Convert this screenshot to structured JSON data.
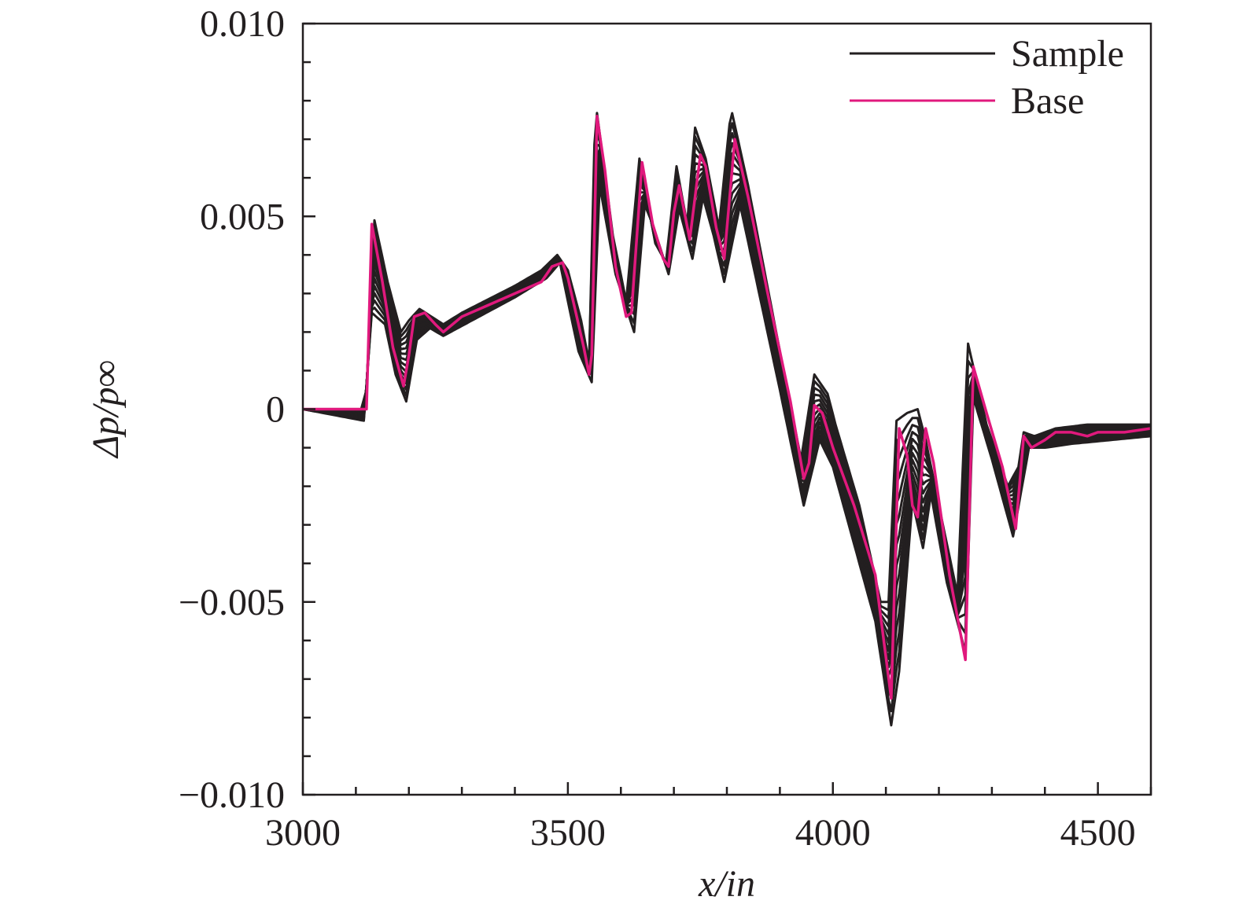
{
  "chart_data": {
    "type": "line",
    "title": "",
    "xlabel": "x/in",
    "ylabel": "Δp/p∞",
    "xlim": [
      3000,
      4600
    ],
    "ylim": [
      -0.01,
      0.01
    ],
    "x_ticks": [
      3000,
      3500,
      4000,
      4500
    ],
    "x_tick_labels": [
      "3000",
      "3500",
      "4000",
      "4500"
    ],
    "x_minor_step": 100,
    "y_ticks": [
      0.01,
      0.005,
      0,
      -0.005,
      -0.01
    ],
    "y_tick_labels": [
      "0.010",
      "0.005",
      "0",
      "−0.005",
      "−0.010"
    ],
    "y_minor_step": 0.001,
    "grid": false,
    "legend": "top-right",
    "colors": {
      "sample": "#231f20",
      "base": "#e0197d"
    },
    "series": [
      {
        "name": "Sample",
        "kind": "ensemble",
        "note_values": "sample envelope bounds",
        "upper": [
          [
            3000,
            0
          ],
          [
            3110,
            0
          ],
          [
            3120,
            0.0005
          ],
          [
            3135,
            0.0049
          ],
          [
            3160,
            0.0033
          ],
          [
            3185,
            0.002
          ],
          [
            3200,
            0.0023
          ],
          [
            3220,
            0.0026
          ],
          [
            3265,
            0.0022
          ],
          [
            3300,
            0.0025
          ],
          [
            3400,
            0.0032
          ],
          [
            3450,
            0.0036
          ],
          [
            3480,
            0.004
          ],
          [
            3500,
            0.0036
          ],
          [
            3525,
            0.0023
          ],
          [
            3540,
            0.0012
          ],
          [
            3552,
            0.008
          ],
          [
            3585,
            0.0045
          ],
          [
            3610,
            0.0028
          ],
          [
            3635,
            0.0065
          ],
          [
            3665,
            0.0043
          ],
          [
            3685,
            0.0038
          ],
          [
            3705,
            0.0063
          ],
          [
            3725,
            0.0048
          ],
          [
            3740,
            0.0073
          ],
          [
            3760,
            0.0065
          ],
          [
            3785,
            0.0047
          ],
          [
            3808,
            0.0078
          ],
          [
            3840,
            0.0058
          ],
          [
            3900,
            0.0015
          ],
          [
            3940,
            -0.0013
          ],
          [
            3965,
            0.0009
          ],
          [
            3990,
            0.0004
          ],
          [
            4005,
            -0.0004
          ],
          [
            4050,
            -0.0025
          ],
          [
            4090,
            -0.005
          ],
          [
            4105,
            -0.005
          ],
          [
            4120,
            -0.0003
          ],
          [
            4140,
            -0.0001
          ],
          [
            4160,
            0
          ],
          [
            4175,
            -0.0008
          ],
          [
            4200,
            -0.0025
          ],
          [
            4235,
            -0.0048
          ],
          [
            4255,
            0.0017
          ],
          [
            4290,
            -0.0004
          ],
          [
            4330,
            -0.002
          ],
          [
            4350,
            -0.0015
          ],
          [
            4360,
            -0.0006
          ],
          [
            4380,
            -0.0007
          ],
          [
            4420,
            -0.0005
          ],
          [
            4480,
            -0.0004
          ],
          [
            4600,
            -0.0004
          ]
        ],
        "lower": [
          [
            3000,
            0
          ],
          [
            3115,
            -0.0003
          ],
          [
            3130,
            0.0025
          ],
          [
            3155,
            0.0022
          ],
          [
            3175,
            0.0009
          ],
          [
            3195,
            0.0002
          ],
          [
            3215,
            0.0018
          ],
          [
            3240,
            0.0021
          ],
          [
            3265,
            0.0019
          ],
          [
            3400,
            0.0029
          ],
          [
            3460,
            0.0034
          ],
          [
            3485,
            0.0038
          ],
          [
            3500,
            0.0028
          ],
          [
            3520,
            0.0015
          ],
          [
            3545,
            0.0007
          ],
          [
            3560,
            0.0058
          ],
          [
            3590,
            0.0035
          ],
          [
            3625,
            0.002
          ],
          [
            3645,
            0.0053
          ],
          [
            3660,
            0.0048
          ],
          [
            3690,
            0.0035
          ],
          [
            3710,
            0.0052
          ],
          [
            3735,
            0.0039
          ],
          [
            3755,
            0.0055
          ],
          [
            3775,
            0.0045
          ],
          [
            3795,
            0.0033
          ],
          [
            3825,
            0.0053
          ],
          [
            3900,
            0.0005
          ],
          [
            3945,
            -0.0025
          ],
          [
            3975,
            -0.0008
          ],
          [
            4000,
            -0.0015
          ],
          [
            4040,
            -0.0035
          ],
          [
            4080,
            -0.0055
          ],
          [
            4110,
            -0.0082
          ],
          [
            4125,
            -0.0068
          ],
          [
            4150,
            -0.0024
          ],
          [
            4170,
            -0.0036
          ],
          [
            4185,
            -0.0022
          ],
          [
            4215,
            -0.0045
          ],
          [
            4250,
            -0.0063
          ],
          [
            4265,
            0.0003
          ],
          [
            4300,
            -0.0013
          ],
          [
            4340,
            -0.0033
          ],
          [
            4370,
            -0.001
          ],
          [
            4400,
            -0.001
          ],
          [
            4450,
            -0.0009
          ],
          [
            4600,
            -0.0007
          ]
        ]
      },
      {
        "name": "Base",
        "kind": "line",
        "points": [
          [
            3000,
            0
          ],
          [
            3040,
            0
          ],
          [
            3080,
            0
          ],
          [
            3120,
            0
          ],
          [
            3130,
            0.0048
          ],
          [
            3150,
            0.0033
          ],
          [
            3170,
            0.0016
          ],
          [
            3190,
            0.0006
          ],
          [
            3200,
            0.0014
          ],
          [
            3210,
            0.0024
          ],
          [
            3230,
            0.0025
          ],
          [
            3250,
            0.0022
          ],
          [
            3265,
            0.002
          ],
          [
            3300,
            0.0024
          ],
          [
            3350,
            0.0027
          ],
          [
            3400,
            0.003
          ],
          [
            3450,
            0.0033
          ],
          [
            3470,
            0.0037
          ],
          [
            3490,
            0.0038
          ],
          [
            3500,
            0.0034
          ],
          [
            3520,
            0.0022
          ],
          [
            3530,
            0.0016
          ],
          [
            3540,
            0.0009
          ],
          [
            3545,
            0.0014
          ],
          [
            3555,
            0.0076
          ],
          [
            3570,
            0.0062
          ],
          [
            3590,
            0.0037
          ],
          [
            3610,
            0.0024
          ],
          [
            3620,
            0.0025
          ],
          [
            3640,
            0.0064
          ],
          [
            3660,
            0.0048
          ],
          [
            3680,
            0.0039
          ],
          [
            3690,
            0.0037
          ],
          [
            3700,
            0.0051
          ],
          [
            3710,
            0.0058
          ],
          [
            3730,
            0.0044
          ],
          [
            3750,
            0.0066
          ],
          [
            3760,
            0.0063
          ],
          [
            3780,
            0.0047
          ],
          [
            3795,
            0.0039
          ],
          [
            3815,
            0.007
          ],
          [
            3840,
            0.0055
          ],
          [
            3880,
            0.0028
          ],
          [
            3920,
            0.0002
          ],
          [
            3945,
            -0.0018
          ],
          [
            3955,
            -0.0014
          ],
          [
            3965,
            0.0001
          ],
          [
            3980,
            -0.0001
          ],
          [
            4000,
            -0.001
          ],
          [
            4040,
            -0.0025
          ],
          [
            4080,
            -0.0043
          ],
          [
            4110,
            -0.0075
          ],
          [
            4125,
            -0.0005
          ],
          [
            4140,
            -0.0012
          ],
          [
            4150,
            -0.0025
          ],
          [
            4160,
            -0.0028
          ],
          [
            4175,
            -0.0005
          ],
          [
            4190,
            -0.0014
          ],
          [
            4220,
            -0.0043
          ],
          [
            4250,
            -0.0065
          ],
          [
            4265,
            0.0011
          ],
          [
            4290,
            -0.0001
          ],
          [
            4320,
            -0.0015
          ],
          [
            4345,
            -0.0031
          ],
          [
            4360,
            -0.0007
          ],
          [
            4375,
            -0.001
          ],
          [
            4400,
            -0.0008
          ],
          [
            4420,
            -0.0006
          ],
          [
            4450,
            -0.0006
          ],
          [
            4480,
            -0.0007
          ],
          [
            4500,
            -0.0006
          ],
          [
            4550,
            -0.0006
          ],
          [
            4600,
            -0.0005
          ]
        ]
      }
    ]
  }
}
